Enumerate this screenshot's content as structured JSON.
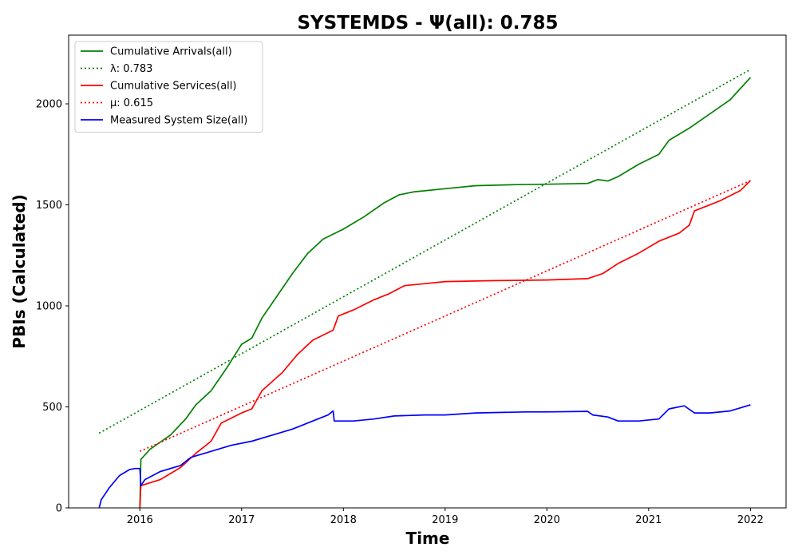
{
  "chart_data": {
    "type": "line",
    "title": "SYSTEMDS -  Ψ(all): 0.785",
    "xlabel": "Time",
    "ylabel": "PBIs (Calculated)",
    "xlim": [
      2015.3,
      2022.35
    ],
    "ylim": [
      0,
      2340
    ],
    "x_ticks": [
      2016,
      2017,
      2018,
      2019,
      2020,
      2021,
      2022
    ],
    "x_tick_labels": [
      "2016",
      "2017",
      "2018",
      "2019",
      "2020",
      "2021",
      "2022"
    ],
    "y_ticks": [
      0,
      500,
      1000,
      1500,
      2000
    ],
    "y_tick_labels": [
      "0",
      "500",
      "1000",
      "1500",
      "2000"
    ],
    "grid": false,
    "legend_position": "top-left",
    "series": [
      {
        "name": "Cumulative Arrivals(all)",
        "color": "#008000",
        "style": "solid",
        "points": [
          [
            2016.0,
            0
          ],
          [
            2016.01,
            240
          ],
          [
            2016.1,
            290
          ],
          [
            2016.3,
            360
          ],
          [
            2016.45,
            440
          ],
          [
            2016.55,
            510
          ],
          [
            2016.7,
            580
          ],
          [
            2016.85,
            690
          ],
          [
            2017.0,
            810
          ],
          [
            2017.1,
            840
          ],
          [
            2017.2,
            940
          ],
          [
            2017.35,
            1050
          ],
          [
            2017.5,
            1160
          ],
          [
            2017.65,
            1260
          ],
          [
            2017.8,
            1330
          ],
          [
            2018.0,
            1380
          ],
          [
            2018.2,
            1440
          ],
          [
            2018.4,
            1510
          ],
          [
            2018.55,
            1550
          ],
          [
            2018.7,
            1565
          ],
          [
            2019.0,
            1580
          ],
          [
            2019.3,
            1595
          ],
          [
            2019.7,
            1600
          ],
          [
            2020.0,
            1602
          ],
          [
            2020.4,
            1606
          ],
          [
            2020.5,
            1625
          ],
          [
            2020.6,
            1618
          ],
          [
            2020.7,
            1640
          ],
          [
            2020.9,
            1700
          ],
          [
            2021.1,
            1750
          ],
          [
            2021.2,
            1820
          ],
          [
            2021.4,
            1880
          ],
          [
            2021.6,
            1950
          ],
          [
            2021.8,
            2020
          ],
          [
            2022.0,
            2130
          ]
        ]
      },
      {
        "name": "λ: 0.783",
        "color": "#008000",
        "style": "dotted",
        "points": [
          [
            2015.6,
            370
          ],
          [
            2022.0,
            2170
          ]
        ]
      },
      {
        "name": "Cumulative Services(all)",
        "color": "#ff0000",
        "style": "solid",
        "points": [
          [
            2016.0,
            0
          ],
          [
            2016.01,
            110
          ],
          [
            2016.2,
            140
          ],
          [
            2016.4,
            200
          ],
          [
            2016.55,
            270
          ],
          [
            2016.7,
            330
          ],
          [
            2016.8,
            420
          ],
          [
            2017.0,
            470
          ],
          [
            2017.1,
            490
          ],
          [
            2017.2,
            580
          ],
          [
            2017.4,
            670
          ],
          [
            2017.55,
            760
          ],
          [
            2017.7,
            830
          ],
          [
            2017.9,
            880
          ],
          [
            2017.95,
            950
          ],
          [
            2018.1,
            980
          ],
          [
            2018.3,
            1030
          ],
          [
            2018.45,
            1060
          ],
          [
            2018.6,
            1100
          ],
          [
            2018.8,
            1110
          ],
          [
            2019.0,
            1120
          ],
          [
            2019.5,
            1125
          ],
          [
            2020.0,
            1128
          ],
          [
            2020.4,
            1135
          ],
          [
            2020.55,
            1160
          ],
          [
            2020.7,
            1210
          ],
          [
            2020.9,
            1260
          ],
          [
            2021.1,
            1320
          ],
          [
            2021.3,
            1360
          ],
          [
            2021.4,
            1400
          ],
          [
            2021.45,
            1470
          ],
          [
            2021.7,
            1520
          ],
          [
            2021.9,
            1570
          ],
          [
            2022.0,
            1620
          ]
        ]
      },
      {
        "name": "μ: 0.615",
        "color": "#ff0000",
        "style": "dotted",
        "points": [
          [
            2016.0,
            280
          ],
          [
            2022.0,
            1620
          ]
        ]
      },
      {
        "name": "Measured System Size(all)",
        "color": "#0000ff",
        "style": "solid",
        "points": [
          [
            2015.6,
            0
          ],
          [
            2015.62,
            40
          ],
          [
            2015.7,
            100
          ],
          [
            2015.8,
            160
          ],
          [
            2015.9,
            190
          ],
          [
            2015.95,
            195
          ],
          [
            2016.0,
            195
          ],
          [
            2016.01,
            110
          ],
          [
            2016.05,
            140
          ],
          [
            2016.2,
            180
          ],
          [
            2016.4,
            210
          ],
          [
            2016.5,
            250
          ],
          [
            2016.7,
            280
          ],
          [
            2016.9,
            310
          ],
          [
            2017.1,
            330
          ],
          [
            2017.3,
            360
          ],
          [
            2017.5,
            390
          ],
          [
            2017.7,
            430
          ],
          [
            2017.85,
            460
          ],
          [
            2017.9,
            480
          ],
          [
            2017.91,
            430
          ],
          [
            2018.1,
            430
          ],
          [
            2018.3,
            440
          ],
          [
            2018.5,
            455
          ],
          [
            2018.8,
            460
          ],
          [
            2019.0,
            460
          ],
          [
            2019.3,
            470
          ],
          [
            2019.8,
            475
          ],
          [
            2020.0,
            475
          ],
          [
            2020.4,
            478
          ],
          [
            2020.45,
            460
          ],
          [
            2020.6,
            450
          ],
          [
            2020.7,
            430
          ],
          [
            2020.9,
            430
          ],
          [
            2021.1,
            440
          ],
          [
            2021.2,
            490
          ],
          [
            2021.35,
            505
          ],
          [
            2021.45,
            470
          ],
          [
            2021.6,
            470
          ],
          [
            2021.8,
            480
          ],
          [
            2021.9,
            495
          ],
          [
            2022.0,
            510
          ]
        ]
      }
    ]
  }
}
